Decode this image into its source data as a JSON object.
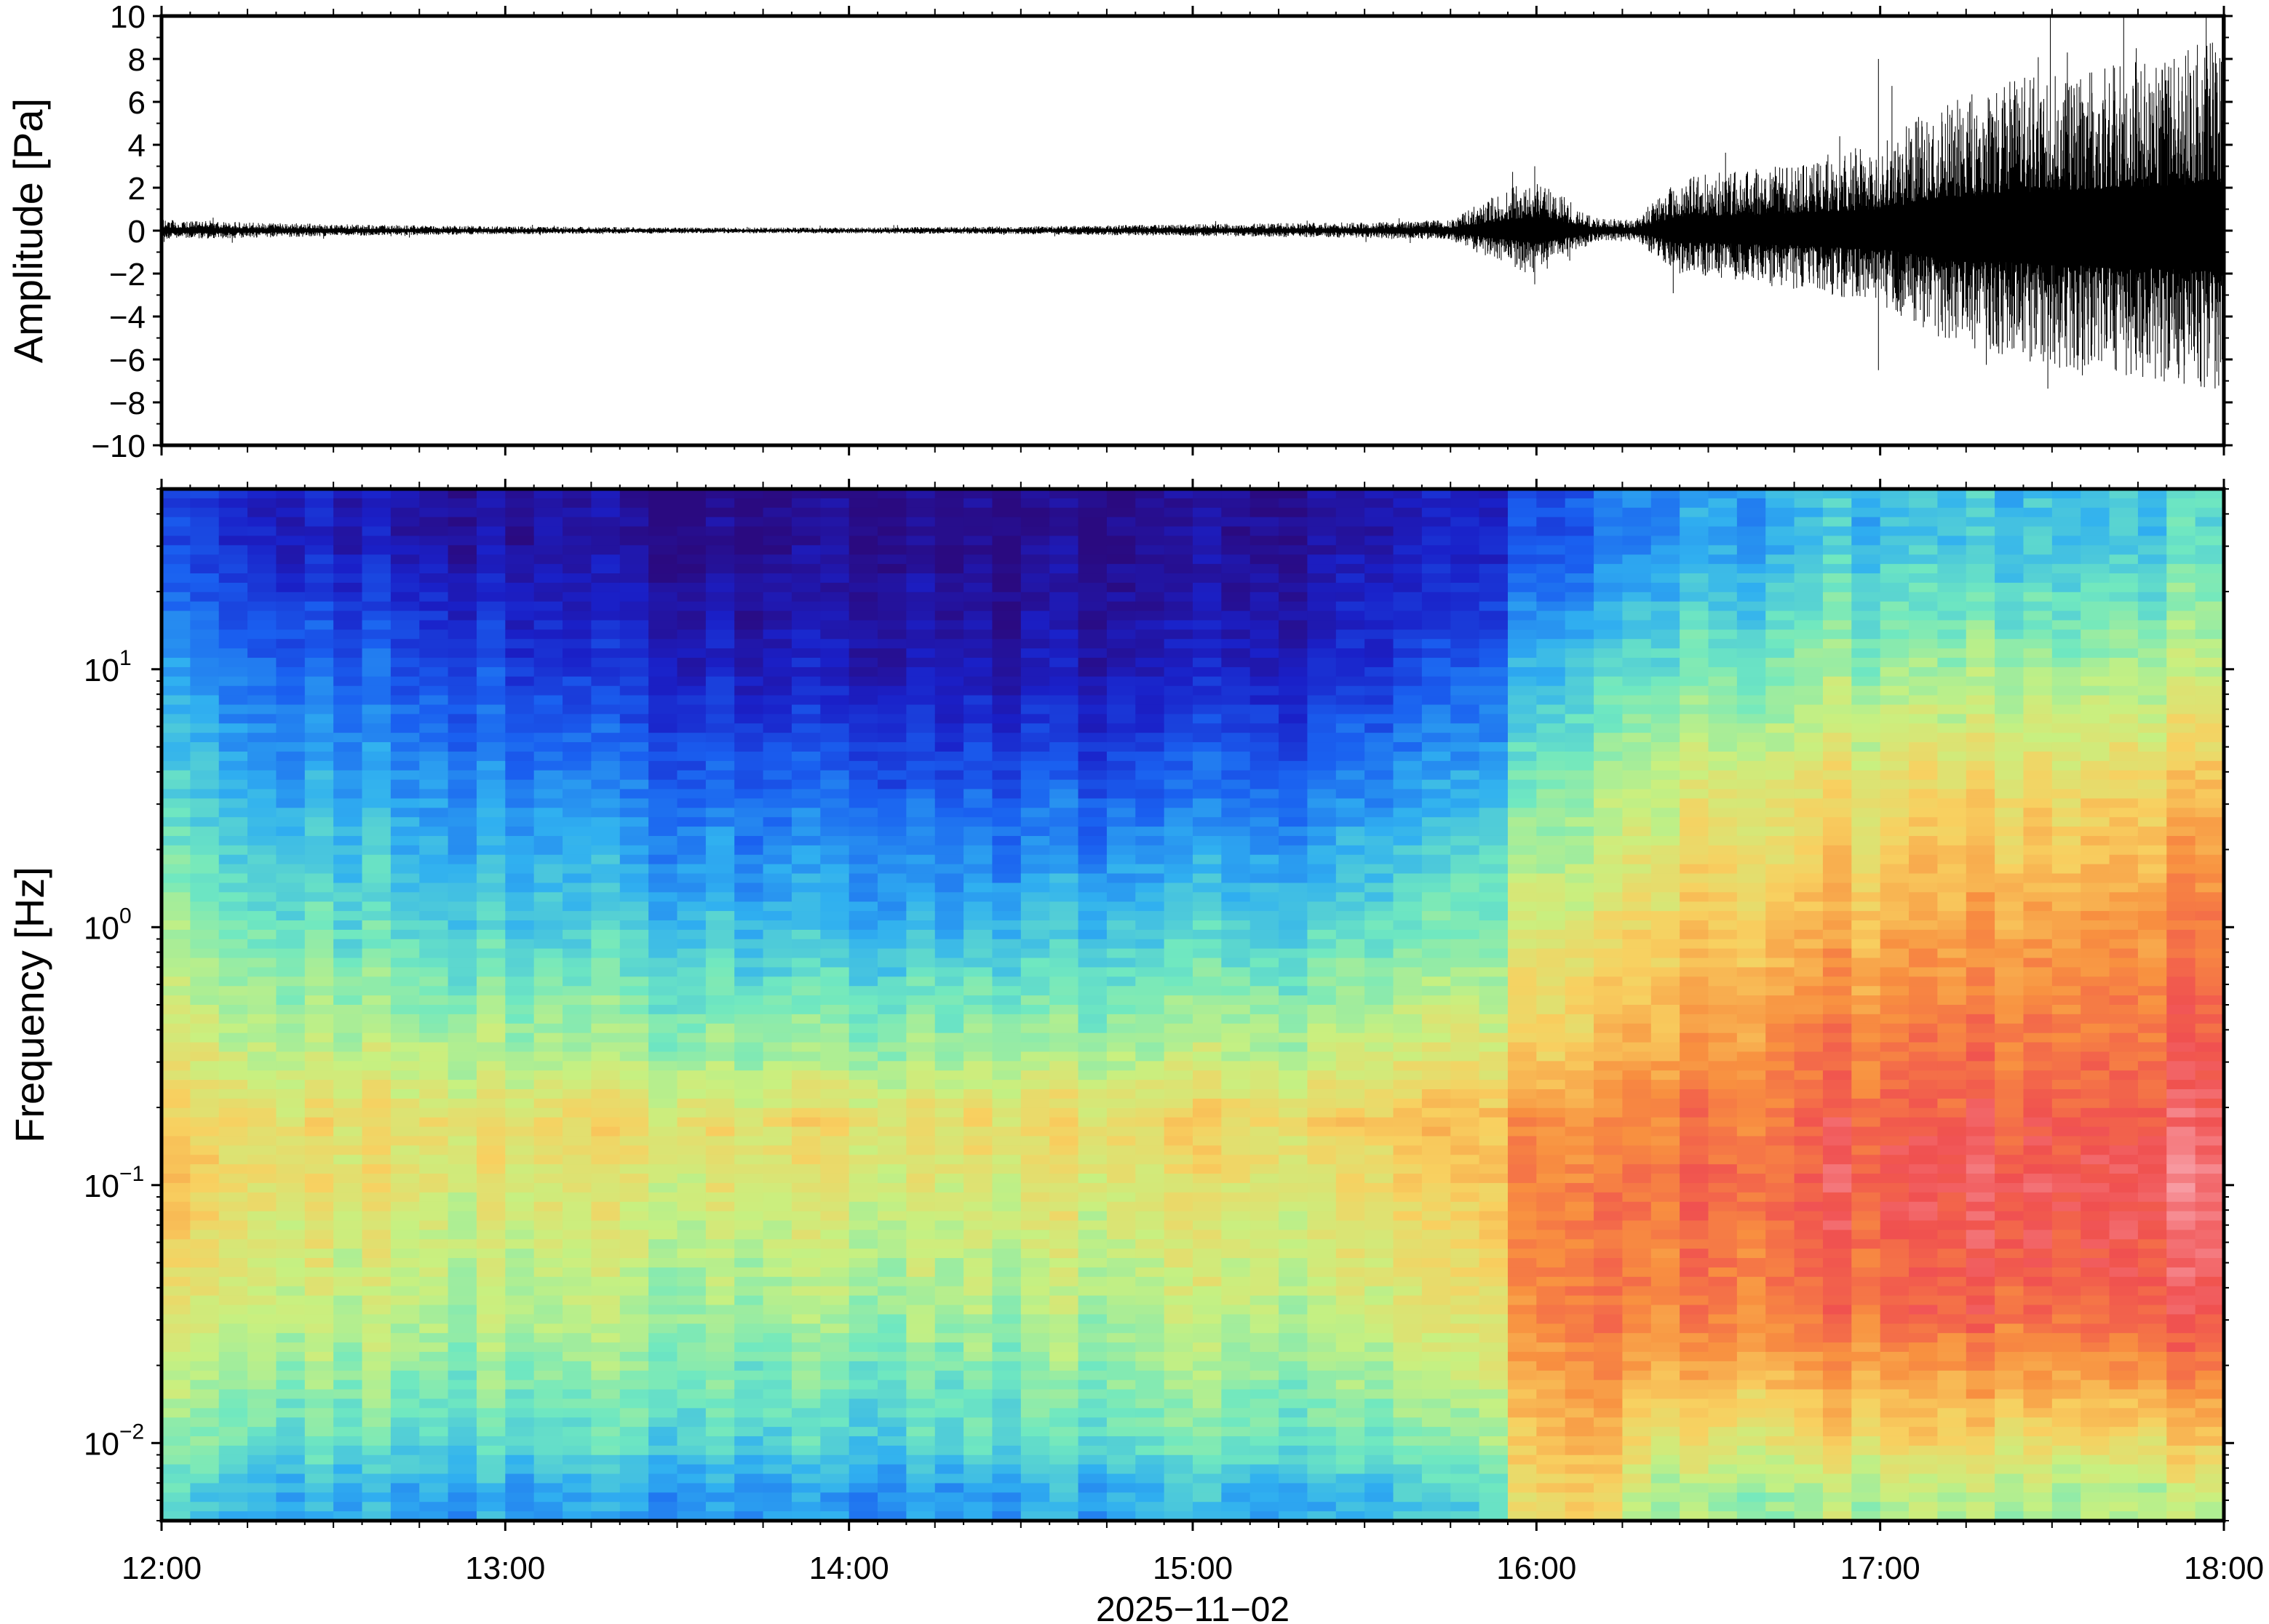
{
  "chart_data": [
    {
      "type": "line",
      "panel": "waveform",
      "ylabel": "Amplitude [Pa]",
      "xlim": [
        "12:00",
        "18:00"
      ],
      "ylim": [
        -10,
        10
      ],
      "yticks": [
        10,
        8,
        6,
        4,
        2,
        0,
        -2,
        -4,
        -6,
        -8,
        -10
      ],
      "ytick_labels": [
        "10",
        "8",
        "6",
        "4",
        "2",
        "0",
        "−2",
        "−4",
        "−6",
        "−8",
        "−10"
      ],
      "grid": false,
      "envelope": {
        "time": [
          "12:00",
          "12:30",
          "13:00",
          "13:30",
          "14:00",
          "14:30",
          "15:00",
          "15:30",
          "15:45",
          "15:55",
          "16:00",
          "16:10",
          "16:17",
          "16:25",
          "16:40",
          "17:00",
          "17:10",
          "17:30",
          "17:45",
          "18:00"
        ],
        "amplitude_pa": [
          0.5,
          0.3,
          0.2,
          0.15,
          0.15,
          0.2,
          0.3,
          0.4,
          0.5,
          2.0,
          2.5,
          0.6,
          0.5,
          2.5,
          3.0,
          4.0,
          6.0,
          7.5,
          8.0,
          9.0
        ]
      },
      "peaks": [
        {
          "time": "16:00",
          "max": 3,
          "min": -2.5
        },
        {
          "time": "17:00",
          "max": 8,
          "min": -6.5
        },
        {
          "time": "17:30",
          "max": 10,
          "min": -6
        },
        {
          "time": "17:45",
          "max": 8.5,
          "min": -6.5
        },
        {
          "time": "18:00",
          "max": 10,
          "min": -6
        }
      ]
    },
    {
      "type": "heatmap",
      "panel": "spectrogram",
      "xlabel": "2025−11−02",
      "ylabel": "Frequency [Hz]",
      "xticks": [
        "12:00",
        "13:00",
        "14:00",
        "15:00",
        "16:00",
        "17:00",
        "18:00"
      ],
      "yscale": "log",
      "ylim_hz": [
        0.005,
        50
      ],
      "yticks_exponent": [
        1,
        0,
        -1,
        -2
      ],
      "ytick_base": "10",
      "colormap": [
        "#2a0a80",
        "#1a20c8",
        "#1a60f0",
        "#30b0f0",
        "#70e8c0",
        "#c8f080",
        "#f8d060",
        "#f89040",
        "#f05050",
        "#f8a0a8"
      ],
      "interpretation": "power rises toward red and pink",
      "time": [
        "12:00",
        "12:30",
        "13:00",
        "13:30",
        "14:00",
        "14:30",
        "15:00",
        "15:30",
        "15:50",
        "16:00",
        "16:10",
        "16:20",
        "16:40",
        "17:00",
        "17:30",
        "18:00"
      ],
      "log10_frequency": [
        1.5,
        1.0,
        0.5,
        0.0,
        -0.5,
        -0.75,
        -1.0,
        -1.5,
        -2.0,
        -2.2
      ],
      "relative_power": [
        [
          0.15,
          0.28,
          0.38,
          0.48,
          0.58,
          0.64,
          0.66,
          0.58,
          0.46,
          0.38
        ],
        [
          0.1,
          0.24,
          0.34,
          0.44,
          0.56,
          0.64,
          0.62,
          0.56,
          0.44,
          0.34
        ],
        [
          0.06,
          0.18,
          0.3,
          0.4,
          0.54,
          0.64,
          0.6,
          0.54,
          0.42,
          0.32
        ],
        [
          0.03,
          0.12,
          0.26,
          0.38,
          0.52,
          0.64,
          0.6,
          0.52,
          0.42,
          0.32
        ],
        [
          0.03,
          0.1,
          0.24,
          0.36,
          0.52,
          0.64,
          0.6,
          0.52,
          0.4,
          0.3
        ],
        [
          0.02,
          0.08,
          0.22,
          0.36,
          0.52,
          0.64,
          0.6,
          0.52,
          0.42,
          0.32
        ],
        [
          0.02,
          0.08,
          0.24,
          0.38,
          0.54,
          0.64,
          0.6,
          0.54,
          0.44,
          0.34
        ],
        [
          0.06,
          0.14,
          0.28,
          0.42,
          0.56,
          0.66,
          0.62,
          0.56,
          0.44,
          0.34
        ],
        [
          0.08,
          0.18,
          0.32,
          0.44,
          0.58,
          0.68,
          0.64,
          0.58,
          0.46,
          0.36
        ],
        [
          0.2,
          0.36,
          0.48,
          0.6,
          0.68,
          0.78,
          0.82,
          0.8,
          0.7,
          0.66
        ],
        [
          0.24,
          0.4,
          0.52,
          0.62,
          0.7,
          0.78,
          0.82,
          0.84,
          0.76,
          0.7
        ],
        [
          0.3,
          0.44,
          0.58,
          0.66,
          0.76,
          0.82,
          0.84,
          0.8,
          0.62,
          0.52
        ],
        [
          0.34,
          0.48,
          0.62,
          0.7,
          0.8,
          0.84,
          0.86,
          0.82,
          0.62,
          0.52
        ],
        [
          0.36,
          0.5,
          0.64,
          0.72,
          0.82,
          0.86,
          0.88,
          0.84,
          0.64,
          0.52
        ],
        [
          0.38,
          0.52,
          0.66,
          0.76,
          0.84,
          0.88,
          0.92,
          0.86,
          0.64,
          0.54
        ],
        [
          0.4,
          0.54,
          0.7,
          0.8,
          0.86,
          0.9,
          0.94,
          0.88,
          0.66,
          0.54
        ]
      ]
    }
  ]
}
